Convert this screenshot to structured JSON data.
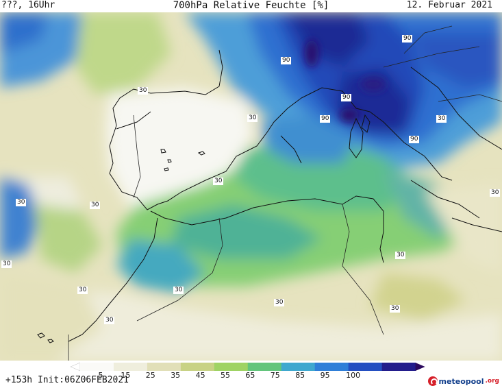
{
  "header": {
    "left": "???, 16Uhr",
    "title": "700hPa Relative Feuchte [%]",
    "date": "12. Februar 2021"
  },
  "footer": {
    "run_info": "+153h Init:06Z06FEB2021",
    "logo_text": "meteopool",
    "logo_tld": ".org"
  },
  "legend": {
    "ticks": [
      "5",
      "15",
      "25",
      "35",
      "45",
      "55",
      "65",
      "75",
      "85",
      "95",
      "100"
    ],
    "colors": [
      "#fafaf7",
      "#efeedd",
      "#e1dfb8",
      "#c8d285",
      "#9fd364",
      "#63c57c",
      "#3fa8cf",
      "#2f7fd8",
      "#244fc1",
      "#231d8c",
      "#2c0a5e"
    ]
  },
  "contour_labels": [
    {
      "text": "90"
    },
    {
      "text": "90"
    },
    {
      "text": "90"
    },
    {
      "text": "90"
    },
    {
      "text": "90"
    },
    {
      "text": "30"
    },
    {
      "text": "30"
    },
    {
      "text": "30"
    },
    {
      "text": "30"
    },
    {
      "text": "30"
    },
    {
      "text": "30"
    },
    {
      "text": "30"
    },
    {
      "text": "30"
    },
    {
      "text": "30"
    },
    {
      "text": "30"
    },
    {
      "text": "30"
    },
    {
      "text": "30"
    },
    {
      "text": "30"
    }
  ]
}
